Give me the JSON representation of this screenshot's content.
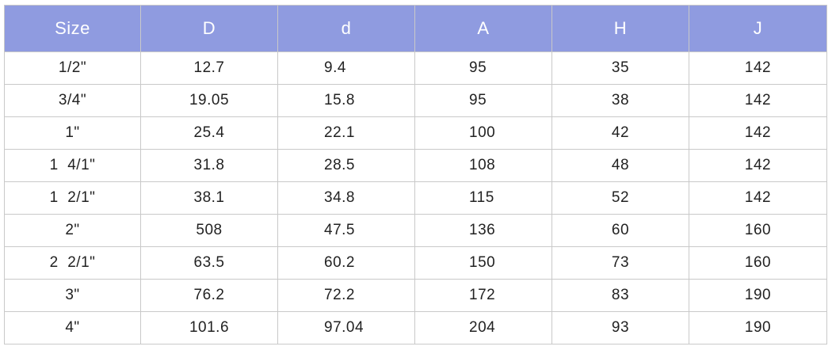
{
  "table": {
    "headers": [
      "Size",
      "D",
      "d",
      "A",
      "H",
      "J"
    ],
    "rows": [
      [
        "1/2\"",
        "12.7",
        "9.4",
        "95",
        "35",
        "142"
      ],
      [
        "3/4\"",
        "19.05",
        "15.8",
        "95",
        "38",
        "142"
      ],
      [
        "1\"",
        "25.4",
        "22.1",
        "100",
        "42",
        "142"
      ],
      [
        "1  4/1\"",
        "31.8",
        "28.5",
        "108",
        "48",
        "142"
      ],
      [
        "1  2/1\"",
        "38.1",
        "34.8",
        "115",
        "52",
        "142"
      ],
      [
        "2\"",
        "508",
        "47.5",
        "136",
        "60",
        "160"
      ],
      [
        "2  2/1\"",
        "63.5",
        "60.2",
        "150",
        "73",
        "160"
      ],
      [
        "3\"",
        "76.2",
        "72.2",
        "172",
        "83",
        "190"
      ],
      [
        "4\"",
        "101.6",
        "97.04",
        "204",
        "93",
        "190"
      ]
    ]
  },
  "colors": {
    "header_bg": "#8f9be0",
    "header_text": "#ffffff",
    "border": "#c9c9c9",
    "cell_text": "#222222"
  }
}
